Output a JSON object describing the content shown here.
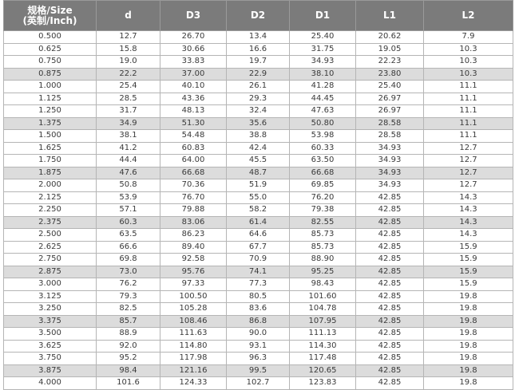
{
  "table": {
    "header": [
      "规格/Size\n(英制/Inch)",
      "d",
      "D3",
      "D2",
      "D1",
      "L1",
      "L2"
    ],
    "rows": [
      [
        "0.500",
        "12.7",
        "26.70",
        "13.4",
        "25.40",
        "20.62",
        "7.9"
      ],
      [
        "0.625",
        "15.8",
        "30.66",
        "16.6",
        "31.75",
        "19.05",
        "10.3"
      ],
      [
        "0.750",
        "19.0",
        "33.83",
        "19.7",
        "34.93",
        "22.23",
        "10.3"
      ],
      [
        "0.875",
        "22.2",
        "37.00",
        "22.9",
        "38.10",
        "23.80",
        "10.3"
      ],
      [
        "1.000",
        "25.4",
        "40.10",
        "26.1",
        "41.28",
        "25.40",
        "11.1"
      ],
      [
        "1.125",
        "28.5",
        "43.36",
        "29.3",
        "44.45",
        "26.97",
        "11.1"
      ],
      [
        "1.250",
        "31.7",
        "48.13",
        "32.4",
        "47.63",
        "26.97",
        "11.1"
      ],
      [
        "1.375",
        "34.9",
        "51.30",
        "35.6",
        "50.80",
        "28.58",
        "11.1"
      ],
      [
        "1.500",
        "38.1",
        "54.48",
        "38.8",
        "53.98",
        "28.58",
        "11.1"
      ],
      [
        "1.625",
        "41.2",
        "60.83",
        "42.4",
        "60.33",
        "34.93",
        "12.7"
      ],
      [
        "1.750",
        "44.4",
        "64.00",
        "45.5",
        "63.50",
        "34.93",
        "12.7"
      ],
      [
        "1.875",
        "47.6",
        "66.68",
        "48.7",
        "66.68",
        "34.93",
        "12.7"
      ],
      [
        "2.000",
        "50.8",
        "70.36",
        "51.9",
        "69.85",
        "34.93",
        "12.7"
      ],
      [
        "2.125",
        "53.9",
        "76.70",
        "55.0",
        "76.20",
        "42.85",
        "14.3"
      ],
      [
        "2.250",
        "57.1",
        "79.88",
        "58.2",
        "79.38",
        "42.85",
        "14.3"
      ],
      [
        "2.375",
        "60.3",
        "83.06",
        "61.4",
        "82.55",
        "42.85",
        "14.3"
      ],
      [
        "2.500",
        "63.5",
        "86.23",
        "64.6",
        "85.73",
        "42.85",
        "14.3"
      ],
      [
        "2.625",
        "66.6",
        "89.40",
        "67.7",
        "85.73",
        "42.85",
        "15.9"
      ],
      [
        "2.750",
        "69.8",
        "92.58",
        "70.9",
        "88.90",
        "42.85",
        "15.9"
      ],
      [
        "2.875",
        "73.0",
        "95.76",
        "74.1",
        "95.25",
        "42.85",
        "15.9"
      ],
      [
        "3.000",
        "76.2",
        "97.33",
        "77.3",
        "98.43",
        "42.85",
        "15.9"
      ],
      [
        "3.125",
        "79.3",
        "100.50",
        "80.5",
        "101.60",
        "42.85",
        "19.8"
      ],
      [
        "3.250",
        "82.5",
        "105.28",
        "83.6",
        "104.78",
        "42.85",
        "19.8"
      ],
      [
        "3.375",
        "85.7",
        "108.46",
        "86.8",
        "107.95",
        "42.85",
        "19.8"
      ],
      [
        "3.500",
        "88.9",
        "111.63",
        "90.0",
        "111.13",
        "42.85",
        "19.8"
      ],
      [
        "3.625",
        "92.0",
        "114.80",
        "93.1",
        "114.30",
        "42.85",
        "19.8"
      ],
      [
        "3.750",
        "95.2",
        "117.98",
        "96.3",
        "117.48",
        "42.85",
        "19.8"
      ],
      [
        "3.875",
        "98.4",
        "121.16",
        "99.5",
        "120.65",
        "42.85",
        "19.8"
      ],
      [
        "4.000",
        "101.6",
        "124.33",
        "102.7",
        "123.83",
        "42.85",
        "19.8"
      ]
    ]
  }
}
